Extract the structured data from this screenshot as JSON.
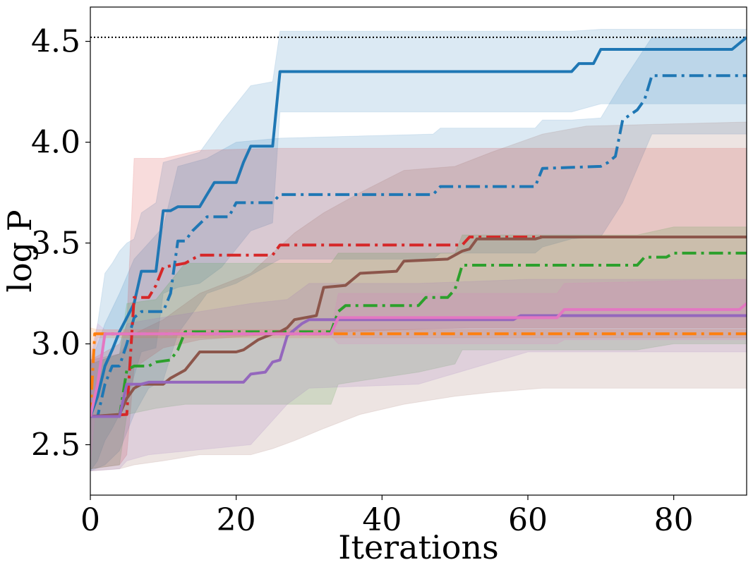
{
  "chart_data": {
    "type": "line",
    "title": "",
    "xlabel": "Iterations",
    "ylabel": "log P",
    "xlim": [
      0,
      90
    ],
    "ylim": [
      2.25,
      4.67
    ],
    "xticks": [
      0,
      20,
      40,
      60,
      80
    ],
    "xtick_labels": [
      "0",
      "20",
      "40",
      "60",
      "80"
    ],
    "yticks": [
      2.5,
      3.0,
      3.5,
      4.0,
      4.5
    ],
    "ytick_labels": [
      "2.5",
      "3.0",
      "3.5",
      "4.0",
      "4.5"
    ],
    "grid": false,
    "legend": "none",
    "reference_line": {
      "y": 4.52,
      "style": "dotted",
      "color": "#000000"
    },
    "series": [
      {
        "color": "#1f77b4",
        "style": "solid",
        "points": [
          [
            0,
            2.64
          ],
          [
            1,
            2.74
          ],
          [
            2,
            2.89
          ],
          [
            3,
            2.97
          ],
          [
            4,
            3.06
          ],
          [
            5,
            3.13
          ],
          [
            6,
            3.2
          ],
          [
            7,
            3.36
          ],
          [
            9,
            3.36
          ],
          [
            10,
            3.66
          ],
          [
            11,
            3.66
          ],
          [
            12,
            3.68
          ],
          [
            15,
            3.68
          ],
          [
            16,
            3.74
          ],
          [
            17,
            3.8
          ],
          [
            20,
            3.8
          ],
          [
            21,
            3.9
          ],
          [
            22,
            3.98
          ],
          [
            25,
            3.98
          ],
          [
            26,
            4.35
          ],
          [
            66,
            4.35
          ],
          [
            67,
            4.39
          ],
          [
            69,
            4.39
          ],
          [
            70,
            4.46
          ],
          [
            88,
            4.46
          ],
          [
            90,
            4.52
          ]
        ],
        "band": [
          [
            0,
            2.37,
            2.9
          ],
          [
            1,
            2.42,
            3.1
          ],
          [
            2,
            2.52,
            3.35
          ],
          [
            3,
            2.58,
            3.4
          ],
          [
            4,
            2.65,
            3.46
          ],
          [
            5,
            2.72,
            3.5
          ],
          [
            6,
            2.84,
            3.52
          ],
          [
            7,
            2.96,
            3.65
          ],
          [
            9,
            2.98,
            3.7
          ],
          [
            10,
            3.25,
            3.9
          ],
          [
            12,
            3.28,
            3.92
          ],
          [
            15,
            3.3,
            3.95
          ],
          [
            18,
            3.38,
            4.1
          ],
          [
            22,
            3.56,
            4.28
          ],
          [
            25,
            3.6,
            4.3
          ],
          [
            26,
            4.15,
            4.55
          ],
          [
            66,
            4.15,
            4.55
          ],
          [
            70,
            4.19,
            4.56
          ],
          [
            88,
            4.19,
            4.56
          ],
          [
            90,
            4.19,
            4.56
          ]
        ]
      },
      {
        "color": "#1f77b4",
        "style": "dashdot",
        "points": [
          [
            0,
            2.64
          ],
          [
            1,
            2.64
          ],
          [
            2,
            2.8
          ],
          [
            3,
            2.89
          ],
          [
            4,
            2.89
          ],
          [
            5,
            3.0
          ],
          [
            6,
            3.13
          ],
          [
            7,
            3.16
          ],
          [
            10,
            3.16
          ],
          [
            11,
            3.25
          ],
          [
            12,
            3.51
          ],
          [
            13,
            3.51
          ],
          [
            14,
            3.56
          ],
          [
            16,
            3.63
          ],
          [
            19,
            3.63
          ],
          [
            20,
            3.7
          ],
          [
            25,
            3.7
          ],
          [
            26,
            3.74
          ],
          [
            47,
            3.74
          ],
          [
            48,
            3.78
          ],
          [
            61,
            3.78
          ],
          [
            62,
            3.87
          ],
          [
            70,
            3.88
          ],
          [
            71,
            3.9
          ],
          [
            72,
            3.93
          ],
          [
            73,
            4.11
          ],
          [
            75,
            4.16
          ],
          [
            76,
            4.21
          ],
          [
            77,
            4.33
          ],
          [
            90,
            4.33
          ]
        ],
        "band": [
          [
            0,
            2.37,
            2.9
          ],
          [
            2,
            2.4,
            3.1
          ],
          [
            4,
            2.47,
            3.25
          ],
          [
            6,
            2.65,
            3.42
          ],
          [
            8,
            2.78,
            3.5
          ],
          [
            10,
            2.82,
            3.58
          ],
          [
            12,
            3.05,
            3.88
          ],
          [
            16,
            3.25,
            3.92
          ],
          [
            20,
            3.3,
            4.0
          ],
          [
            26,
            3.42,
            4.02
          ],
          [
            47,
            3.42,
            4.04
          ],
          [
            48,
            3.45,
            4.07
          ],
          [
            61,
            3.45,
            4.07
          ],
          [
            62,
            3.48,
            4.11
          ],
          [
            66,
            3.52,
            4.11
          ],
          [
            70,
            3.53,
            4.12
          ],
          [
            73,
            3.7,
            4.3
          ],
          [
            77,
            4.04,
            4.52
          ],
          [
            90,
            4.04,
            4.52
          ]
        ]
      },
      {
        "color": "#d62728",
        "style": "dashdot",
        "points": [
          [
            0,
            2.64
          ],
          [
            5,
            2.65
          ],
          [
            6,
            3.23
          ],
          [
            8,
            3.23
          ],
          [
            9,
            3.29
          ],
          [
            10,
            3.38
          ],
          [
            13,
            3.4
          ],
          [
            15,
            3.44
          ],
          [
            25,
            3.44
          ],
          [
            26,
            3.49
          ],
          [
            51,
            3.49
          ],
          [
            52,
            3.53
          ],
          [
            90,
            3.53
          ]
        ],
        "band": [
          [
            0,
            2.38,
            2.92
          ],
          [
            4,
            2.4,
            3.0
          ],
          [
            5,
            2.45,
            3.1
          ],
          [
            6,
            2.88,
            3.92
          ],
          [
            10,
            2.98,
            3.92
          ],
          [
            15,
            3.02,
            3.96
          ],
          [
            26,
            3.05,
            3.97
          ],
          [
            52,
            3.08,
            3.97
          ],
          [
            90,
            3.08,
            3.97
          ]
        ]
      },
      {
        "color": "#2ca02c",
        "style": "dashdot",
        "points": [
          [
            0,
            2.64
          ],
          [
            4,
            2.64
          ],
          [
            5,
            2.87
          ],
          [
            6,
            2.89
          ],
          [
            8,
            2.89
          ],
          [
            9,
            2.91
          ],
          [
            11,
            2.92
          ],
          [
            12,
            2.97
          ],
          [
            13,
            3.06
          ],
          [
            33,
            3.06
          ],
          [
            34,
            3.16
          ],
          [
            35,
            3.19
          ],
          [
            45,
            3.19
          ],
          [
            46,
            3.23
          ],
          [
            49,
            3.23
          ],
          [
            50,
            3.27
          ],
          [
            51,
            3.39
          ],
          [
            75,
            3.39
          ],
          [
            76,
            3.43
          ],
          [
            79,
            3.43
          ],
          [
            80,
            3.45
          ],
          [
            90,
            3.45
          ]
        ],
        "band": [
          [
            0,
            2.38,
            2.9
          ],
          [
            4,
            2.4,
            2.95
          ],
          [
            5,
            2.65,
            3.2
          ],
          [
            9,
            2.68,
            3.22
          ],
          [
            13,
            2.7,
            3.4
          ],
          [
            33,
            2.7,
            3.4
          ],
          [
            34,
            2.8,
            3.45
          ],
          [
            45,
            2.86,
            3.45
          ],
          [
            50,
            2.9,
            3.45
          ],
          [
            51,
            2.97,
            3.54
          ],
          [
            75,
            2.97,
            3.54
          ],
          [
            80,
            3.0,
            3.58
          ],
          [
            90,
            3.0,
            3.58
          ]
        ]
      },
      {
        "color": "#ff7f0e",
        "style": "dashdot",
        "points": [
          [
            0,
            2.64
          ],
          [
            0.6,
            3.05
          ],
          [
            90,
            3.05
          ]
        ],
        "band": [
          [
            0,
            2.88,
            3.08
          ],
          [
            1,
            3.03,
            3.07
          ],
          [
            90,
            3.03,
            3.07
          ]
        ]
      },
      {
        "color": "#8c564b",
        "style": "solid",
        "points": [
          [
            0,
            2.64
          ],
          [
            4,
            2.65
          ],
          [
            5,
            2.73
          ],
          [
            6,
            2.78
          ],
          [
            7,
            2.8
          ],
          [
            10,
            2.8
          ],
          [
            11,
            2.83
          ],
          [
            13,
            2.87
          ],
          [
            15,
            2.96
          ],
          [
            20,
            2.96
          ],
          [
            21,
            2.97
          ],
          [
            23,
            3.02
          ],
          [
            25,
            3.05
          ],
          [
            26,
            3.06
          ],
          [
            27,
            3.08
          ],
          [
            28,
            3.12
          ],
          [
            31,
            3.14
          ],
          [
            32,
            3.28
          ],
          [
            35,
            3.29
          ],
          [
            37,
            3.35
          ],
          [
            42,
            3.36
          ],
          [
            43,
            3.41
          ],
          [
            49,
            3.42
          ],
          [
            51,
            3.46
          ],
          [
            52,
            3.47
          ],
          [
            53,
            3.52
          ],
          [
            61,
            3.52
          ],
          [
            62,
            3.53
          ],
          [
            90,
            3.53
          ]
        ],
        "band": [
          [
            0,
            2.37,
            2.92
          ],
          [
            4,
            2.38,
            2.95
          ],
          [
            6,
            2.4,
            3.05
          ],
          [
            10,
            2.42,
            3.12
          ],
          [
            15,
            2.45,
            3.25
          ],
          [
            22,
            2.45,
            3.35
          ],
          [
            25,
            2.48,
            3.45
          ],
          [
            28,
            2.52,
            3.55
          ],
          [
            32,
            2.58,
            3.65
          ],
          [
            37,
            2.65,
            3.75
          ],
          [
            43,
            2.7,
            3.86
          ],
          [
            50,
            2.74,
            3.88
          ],
          [
            55,
            2.76,
            3.95
          ],
          [
            62,
            2.78,
            4.04
          ],
          [
            68,
            2.78,
            4.08
          ],
          [
            90,
            2.78,
            4.1
          ]
        ]
      },
      {
        "color": "#9467bd",
        "style": "solid",
        "points": [
          [
            0,
            2.64
          ],
          [
            4,
            2.64
          ],
          [
            5,
            2.8
          ],
          [
            7,
            2.8
          ],
          [
            8,
            2.81
          ],
          [
            21,
            2.81
          ],
          [
            22,
            2.85
          ],
          [
            24,
            2.86
          ],
          [
            25,
            2.91
          ],
          [
            26,
            2.92
          ],
          [
            27,
            3.04
          ],
          [
            29,
            3.1
          ],
          [
            30,
            3.12
          ],
          [
            58,
            3.12
          ],
          [
            59,
            3.14
          ],
          [
            90,
            3.14
          ]
        ],
        "band": [
          [
            0,
            2.37,
            2.9
          ],
          [
            4,
            2.38,
            2.95
          ],
          [
            5,
            2.42,
            3.1
          ],
          [
            8,
            2.45,
            3.12
          ],
          [
            22,
            2.5,
            3.2
          ],
          [
            27,
            2.7,
            3.22
          ],
          [
            30,
            2.78,
            3.3
          ],
          [
            45,
            2.8,
            3.3
          ],
          [
            60,
            2.96,
            3.32
          ],
          [
            90,
            2.96,
            3.32
          ]
        ]
      },
      {
        "color": "#e377c2",
        "style": "solid",
        "points": [
          [
            0,
            2.64
          ],
          [
            1,
            2.8
          ],
          [
            2,
            3.05
          ],
          [
            33,
            3.05
          ],
          [
            34,
            3.13
          ],
          [
            64,
            3.13
          ],
          [
            65,
            3.17
          ],
          [
            89,
            3.17
          ],
          [
            90,
            3.2
          ]
        ],
        "band": [
          [
            0,
            2.4,
            2.95
          ],
          [
            1,
            2.8,
            3.1
          ],
          [
            2,
            3.04,
            3.07
          ],
          [
            33,
            3.04,
            3.07
          ],
          [
            34,
            3.0,
            3.25
          ],
          [
            64,
            3.0,
            3.25
          ],
          [
            65,
            3.02,
            3.3
          ],
          [
            90,
            3.02,
            3.32
          ]
        ]
      }
    ]
  }
}
